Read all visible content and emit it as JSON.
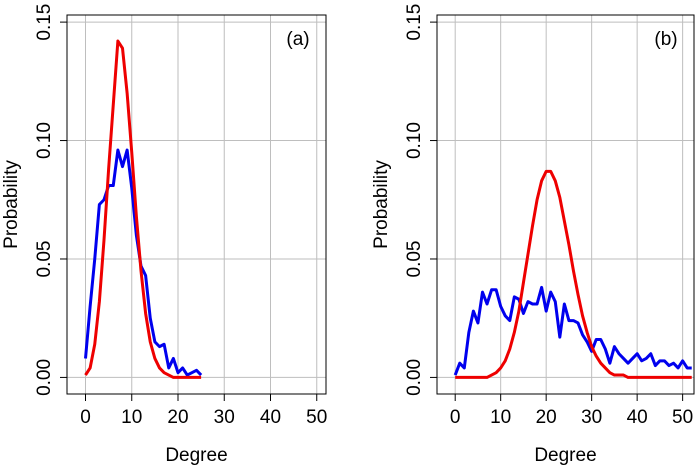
{
  "chart_data": [
    {
      "type": "line",
      "annotation": "(a)",
      "xlabel": "Degree",
      "ylabel": "Probability",
      "xlim": [
        -4,
        52
      ],
      "ylim": [
        -0.007,
        0.153
      ],
      "xticks": [
        0,
        10,
        20,
        30,
        40,
        50
      ],
      "yticks": [
        {
          "value": 0,
          "label": "0.00"
        },
        {
          "value": 0.05,
          "label": "0.05"
        },
        {
          "value": 0.1,
          "label": "0.10"
        },
        {
          "value": 0.15,
          "label": "0.15"
        }
      ],
      "grid": true,
      "x": [
        0,
        1,
        2,
        3,
        4,
        5,
        6,
        7,
        8,
        9,
        10,
        11,
        12,
        13,
        14,
        15,
        16,
        17,
        18,
        19,
        20,
        21,
        22,
        23,
        24,
        25
      ],
      "series": [
        {
          "color": "#0000ee",
          "values": [
            0.008,
            0.03,
            0.05,
            0.073,
            0.075,
            0.081,
            0.081,
            0.096,
            0.089,
            0.096,
            0.08,
            0.06,
            0.047,
            0.043,
            0.025,
            0.015,
            0.013,
            0.014,
            0.004,
            0.008,
            0.002,
            0.004,
            0.001,
            0.002,
            0.003,
            0.001
          ]
        },
        {
          "color": "#ee0000",
          "values": [
            0.001,
            0.004,
            0.014,
            0.032,
            0.058,
            0.088,
            0.115,
            0.142,
            0.139,
            0.12,
            0.095,
            0.068,
            0.045,
            0.027,
            0.015,
            0.008,
            0.004,
            0.002,
            0.001,
            0,
            0,
            0,
            0,
            0,
            0,
            0
          ]
        }
      ]
    },
    {
      "type": "line",
      "annotation": "(b)",
      "xlabel": "Degree",
      "ylabel": "Probability",
      "xlim": [
        -4,
        52.5
      ],
      "ylim": [
        -0.007,
        0.153
      ],
      "xticks": [
        0,
        10,
        20,
        30,
        40,
        50
      ],
      "yticks": [
        {
          "value": 0,
          "label": "0.00"
        },
        {
          "value": 0.05,
          "label": "0.05"
        },
        {
          "value": 0.1,
          "label": "0.10"
        },
        {
          "value": 0.15,
          "label": "0.15"
        }
      ],
      "grid": true,
      "x": [
        0,
        1,
        2,
        3,
        4,
        5,
        6,
        7,
        8,
        9,
        10,
        11,
        12,
        13,
        14,
        15,
        16,
        17,
        18,
        19,
        20,
        21,
        22,
        23,
        24,
        25,
        26,
        27,
        28,
        29,
        30,
        31,
        32,
        33,
        34,
        35,
        36,
        37,
        38,
        39,
        40,
        41,
        42,
        43,
        44,
        45,
        46,
        47,
        48,
        49,
        50,
        51,
        52
      ],
      "series": [
        {
          "color": "#0000ee",
          "values": [
            0.001,
            0.006,
            0.004,
            0.019,
            0.028,
            0.023,
            0.036,
            0.031,
            0.037,
            0.037,
            0.03,
            0.026,
            0.024,
            0.034,
            0.033,
            0.027,
            0.032,
            0.031,
            0.031,
            0.038,
            0.028,
            0.036,
            0.032,
            0.017,
            0.031,
            0.024,
            0.024,
            0.023,
            0.018,
            0.015,
            0.011,
            0.016,
            0.016,
            0.012,
            0.006,
            0.013,
            0.01,
            0.008,
            0.006,
            0.008,
            0.01,
            0.007,
            0.008,
            0.01,
            0.005,
            0.007,
            0.007,
            0.005,
            0.006,
            0.004,
            0.007,
            0.004,
            0.004
          ]
        },
        {
          "color": "#ee0000",
          "values": [
            0,
            0,
            0,
            0,
            0,
            0,
            0,
            0,
            0.001,
            0.002,
            0.004,
            0.007,
            0.012,
            0.019,
            0.028,
            0.04,
            0.052,
            0.064,
            0.075,
            0.083,
            0.087,
            0.087,
            0.083,
            0.076,
            0.066,
            0.056,
            0.045,
            0.035,
            0.026,
            0.019,
            0.013,
            0.009,
            0.006,
            0.004,
            0.002,
            0.001,
            0.001,
            0.001,
            0,
            0,
            0,
            0,
            0,
            0,
            0,
            0,
            0,
            0,
            0,
            0,
            0,
            0,
            0
          ]
        }
      ]
    }
  ]
}
